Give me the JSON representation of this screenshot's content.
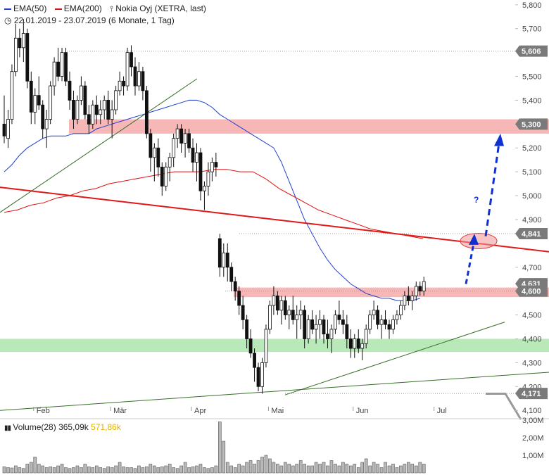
{
  "legend": {
    "ema50_label": "EMA(50)",
    "ema200_label": "EMA(200)",
    "instrument": "Nokia Oyj (XETRA, last)",
    "period": "22.01.2019 - 23.07.2019",
    "range": "(6 Monate, 1 Tag)",
    "volume_label": "Volume(28)",
    "volume_value1": "365,09k",
    "volume_value2": "571,86k"
  },
  "colors": {
    "ema50": "#2040d0",
    "ema200": "#e01010",
    "trend_red": "#e01818",
    "trend_green": "#3a6e2a",
    "zone_red": "#f7b7b7",
    "zone_green": "#b9e8b9",
    "arrow": "#1030d0",
    "tag_bg": "#7a7a7a"
  },
  "chart_data": {
    "type": "candlestick",
    "ylim": [
      4.08,
      5.82
    ],
    "y_ticks": [
      "5,800",
      "5,700",
      "5,500",
      "5,400",
      "5,200",
      "5,100",
      "5,000",
      "4,900",
      "4,700",
      "4,500",
      "4,400",
      "4,300",
      "4,200",
      "4,100"
    ],
    "y_tick_values": [
      5.8,
      5.7,
      5.5,
      5.4,
      5.2,
      5.1,
      5.0,
      4.9,
      4.7,
      4.5,
      4.4,
      4.3,
      4.2,
      4.1
    ],
    "price_tags": [
      {
        "label": "5,606",
        "value": 5.606
      },
      {
        "label": "5,300",
        "value": 5.3
      },
      {
        "label": "4,841",
        "value": 4.841
      },
      {
        "label": "4,631",
        "value": 4.631
      },
      {
        "label": "4,600",
        "value": 4.6
      },
      {
        "label": "4,171",
        "value": 4.171
      }
    ],
    "x_labels": [
      {
        "label": "Feb",
        "day": 8
      },
      {
        "label": "Mär",
        "day": 28
      },
      {
        "label": "Apr",
        "day": 49
      },
      {
        "label": "Mai",
        "day": 69
      },
      {
        "label": "Jun",
        "day": 91
      },
      {
        "label": "Jul",
        "day": 112
      }
    ],
    "candles": [
      [
        5.3,
        5.42,
        5.22,
        5.25
      ],
      [
        5.24,
        5.36,
        5.2,
        5.32
      ],
      [
        5.32,
        5.55,
        5.3,
        5.52
      ],
      [
        5.52,
        5.72,
        5.5,
        5.66
      ],
      [
        5.66,
        5.7,
        5.58,
        5.62
      ],
      [
        5.62,
        5.74,
        5.56,
        5.68
      ],
      [
        5.68,
        5.7,
        5.45,
        5.48
      ],
      [
        5.48,
        5.52,
        5.3,
        5.35
      ],
      [
        5.35,
        5.45,
        5.3,
        5.42
      ],
      [
        5.42,
        5.5,
        5.36,
        5.38
      ],
      [
        5.38,
        5.4,
        5.24,
        5.28
      ],
      [
        5.28,
        5.36,
        5.2,
        5.32
      ],
      [
        5.32,
        5.48,
        5.3,
        5.46
      ],
      [
        5.46,
        5.58,
        5.42,
        5.56
      ],
      [
        5.56,
        5.62,
        5.48,
        5.5
      ],
      [
        5.5,
        5.62,
        5.48,
        5.6
      ],
      [
        5.6,
        5.62,
        5.46,
        5.48
      ],
      [
        5.48,
        5.52,
        5.36,
        5.4
      ],
      [
        5.4,
        5.44,
        5.28,
        5.32
      ],
      [
        5.32,
        5.42,
        5.3,
        5.4
      ],
      [
        5.4,
        5.5,
        5.38,
        5.46
      ],
      [
        5.46,
        5.48,
        5.32,
        5.34
      ],
      [
        5.34,
        5.38,
        5.26,
        5.3
      ],
      [
        5.3,
        5.4,
        5.28,
        5.38
      ],
      [
        5.38,
        5.42,
        5.3,
        5.34
      ],
      [
        5.34,
        5.4,
        5.3,
        5.36
      ],
      [
        5.36,
        5.42,
        5.32,
        5.4
      ],
      [
        5.4,
        5.44,
        5.3,
        5.32
      ],
      [
        5.32,
        5.4,
        5.24,
        5.36
      ],
      [
        5.36,
        5.46,
        5.34,
        5.44
      ],
      [
        5.44,
        5.52,
        5.42,
        5.48
      ],
      [
        5.48,
        5.5,
        5.42,
        5.46
      ],
      [
        5.46,
        5.62,
        5.44,
        5.6
      ],
      [
        5.6,
        5.63,
        5.5,
        5.54
      ],
      [
        5.54,
        5.58,
        5.42,
        5.46
      ],
      [
        5.46,
        5.56,
        5.44,
        5.52
      ],
      [
        5.52,
        5.54,
        5.4,
        5.44
      ],
      [
        5.44,
        5.46,
        5.24,
        5.26
      ],
      [
        5.26,
        5.28,
        5.1,
        5.16
      ],
      [
        5.16,
        5.22,
        5.06,
        5.2
      ],
      [
        5.2,
        5.24,
        5.08,
        5.12
      ],
      [
        5.12,
        5.14,
        5.0,
        5.04
      ],
      [
        5.04,
        5.14,
        5.02,
        5.12
      ],
      [
        5.12,
        5.18,
        5.06,
        5.16
      ],
      [
        5.16,
        5.26,
        5.12,
        5.24
      ],
      [
        5.24,
        5.3,
        5.2,
        5.28
      ],
      [
        5.28,
        5.3,
        5.18,
        5.22
      ],
      [
        5.22,
        5.28,
        5.16,
        5.26
      ],
      [
        5.26,
        5.28,
        5.18,
        5.2
      ],
      [
        5.2,
        5.24,
        5.1,
        5.14
      ],
      [
        5.14,
        5.22,
        5.06,
        5.18
      ],
      [
        5.18,
        5.2,
        4.98,
        5.02
      ],
      [
        5.02,
        5.06,
        4.94,
        5.04
      ],
      [
        5.04,
        5.14,
        5.0,
        5.1
      ],
      [
        5.1,
        5.16,
        5.06,
        5.14
      ],
      [
        5.14,
        5.18,
        5.08,
        5.12
      ],
      [
        4.82,
        4.84,
        4.66,
        4.7
      ],
      [
        4.7,
        4.8,
        4.66,
        4.76
      ],
      [
        4.76,
        4.8,
        4.64,
        4.7
      ],
      [
        4.7,
        4.72,
        4.6,
        4.64
      ],
      [
        4.64,
        4.66,
        4.56,
        4.6
      ],
      [
        4.6,
        4.62,
        4.5,
        4.54
      ],
      [
        4.54,
        4.58,
        4.44,
        4.48
      ],
      [
        4.48,
        4.5,
        4.36,
        4.4
      ],
      [
        4.4,
        4.44,
        4.32,
        4.34
      ],
      [
        4.34,
        4.36,
        4.22,
        4.28
      ],
      [
        4.28,
        4.3,
        4.18,
        4.2
      ],
      [
        4.2,
        4.32,
        4.17,
        4.3
      ],
      [
        4.3,
        4.46,
        4.28,
        4.44
      ],
      [
        4.44,
        4.56,
        4.42,
        4.54
      ],
      [
        4.54,
        4.62,
        4.5,
        4.58
      ],
      [
        4.58,
        4.6,
        4.5,
        4.52
      ],
      [
        4.52,
        4.58,
        4.46,
        4.56
      ],
      [
        4.56,
        4.58,
        4.48,
        4.5
      ],
      [
        4.5,
        4.54,
        4.44,
        4.52
      ],
      [
        4.52,
        4.58,
        4.46,
        4.48
      ],
      [
        4.48,
        4.54,
        4.4,
        4.5
      ],
      [
        4.5,
        4.56,
        4.44,
        4.52
      ],
      [
        4.52,
        4.54,
        4.36,
        4.4
      ],
      [
        4.4,
        4.5,
        4.38,
        4.48
      ],
      [
        4.48,
        4.52,
        4.42,
        4.44
      ],
      [
        4.44,
        4.5,
        4.38,
        4.46
      ],
      [
        4.46,
        4.52,
        4.4,
        4.48
      ],
      [
        4.48,
        4.5,
        4.38,
        4.42
      ],
      [
        4.42,
        4.48,
        4.36,
        4.4
      ],
      [
        4.4,
        4.46,
        4.34,
        4.44
      ],
      [
        4.44,
        4.52,
        4.42,
        4.5
      ],
      [
        4.5,
        4.56,
        4.46,
        4.48
      ],
      [
        4.48,
        4.52,
        4.42,
        4.46
      ],
      [
        4.46,
        4.5,
        4.36,
        4.4
      ],
      [
        4.4,
        4.44,
        4.32,
        4.36
      ],
      [
        4.36,
        4.42,
        4.32,
        4.4
      ],
      [
        4.4,
        4.44,
        4.34,
        4.36
      ],
      [
        4.36,
        4.4,
        4.31,
        4.38
      ],
      [
        4.38,
        4.46,
        4.36,
        4.44
      ],
      [
        4.44,
        4.52,
        4.42,
        4.5
      ],
      [
        4.5,
        4.56,
        4.48,
        4.52
      ],
      [
        4.52,
        4.54,
        4.44,
        4.46
      ],
      [
        4.46,
        4.5,
        4.4,
        4.48
      ],
      [
        4.48,
        4.52,
        4.44,
        4.46
      ],
      [
        4.46,
        4.48,
        4.4,
        4.44
      ],
      [
        4.44,
        4.5,
        4.42,
        4.48
      ],
      [
        4.48,
        4.52,
        4.46,
        4.5
      ],
      [
        4.5,
        4.56,
        4.48,
        4.54
      ],
      [
        4.54,
        4.6,
        4.52,
        4.58
      ],
      [
        4.58,
        4.62,
        4.54,
        4.56
      ],
      [
        4.56,
        4.6,
        4.52,
        4.58
      ],
      [
        4.58,
        4.64,
        4.56,
        4.62
      ],
      [
        4.62,
        4.64,
        4.58,
        4.6
      ],
      [
        4.6,
        4.66,
        4.58,
        4.64
      ]
    ],
    "ema50": [
      5.1,
      5.13,
      5.17,
      5.2,
      5.22,
      5.24,
      5.25,
      5.25,
      5.25,
      5.26,
      5.26,
      5.26,
      5.28,
      5.29,
      5.3,
      5.31,
      5.32,
      5.33,
      5.34,
      5.35,
      5.36,
      5.37,
      5.38,
      5.39,
      5.4,
      5.4,
      5.39,
      5.37,
      5.34,
      5.32,
      5.3,
      5.28,
      5.26,
      5.24,
      5.22,
      5.2,
      5.14,
      5.06,
      4.98,
      4.9,
      4.84,
      4.78,
      4.73,
      4.69,
      4.66,
      4.63,
      4.61,
      4.59,
      4.58,
      4.57,
      4.57,
      4.56,
      4.56,
      4.56,
      4.57
    ],
    "ema200": [
      4.93,
      4.94,
      4.96,
      4.97,
      4.99,
      5.0,
      5.02,
      5.03,
      5.05,
      5.06,
      5.07,
      5.08,
      5.09,
      5.1,
      5.1,
      5.1,
      5.11,
      5.11,
      5.1,
      5.1,
      5.07,
      5.03,
      5.0,
      4.97,
      4.94,
      4.92,
      4.9,
      4.88,
      4.86,
      4.85,
      4.84,
      4.83,
      4.82
    ],
    "volume": {
      "ylim": [
        0,
        3.0
      ],
      "y_ticks": [
        "3,00M",
        "2,00M",
        "1,00M"
      ],
      "y_tick_values": [
        3.0,
        2.0,
        1.0
      ],
      "values": [
        0.35,
        0.3,
        0.28,
        0.4,
        0.3,
        0.25,
        0.5,
        0.6,
        0.9,
        0.5,
        0.4,
        0.3,
        0.35,
        0.3,
        0.4,
        0.5,
        0.3,
        0.25,
        0.3,
        0.4,
        0.3,
        0.5,
        0.35,
        0.3,
        0.4,
        0.3,
        0.25,
        0.35,
        0.3,
        0.4,
        0.6,
        0.35,
        0.3,
        0.3,
        0.25,
        0.4,
        0.3,
        0.35,
        0.5,
        0.4,
        0.3,
        0.35,
        0.4,
        0.5,
        0.3,
        0.25,
        0.4,
        0.6,
        0.3,
        0.35,
        0.4,
        0.5,
        0.3,
        0.25,
        0.3,
        0.4,
        2.9,
        1.8,
        0.6,
        0.4,
        0.3,
        0.5,
        0.4,
        0.6,
        0.7,
        0.5,
        0.7,
        0.9,
        1.0,
        0.8,
        0.6,
        0.5,
        0.4,
        0.6,
        0.5,
        0.4,
        0.5,
        0.7,
        0.5,
        0.4,
        0.4,
        0.6,
        0.5,
        0.6,
        0.4,
        0.7,
        0.5,
        0.4,
        0.6,
        0.5,
        0.4,
        0.5,
        0.3,
        0.6,
        0.8,
        0.4,
        0.6,
        0.5,
        0.3,
        0.6,
        0.4,
        0.5,
        0.3,
        0.4,
        0.5,
        0.6,
        0.5,
        0.4,
        0.6,
        0.5
      ]
    }
  }
}
